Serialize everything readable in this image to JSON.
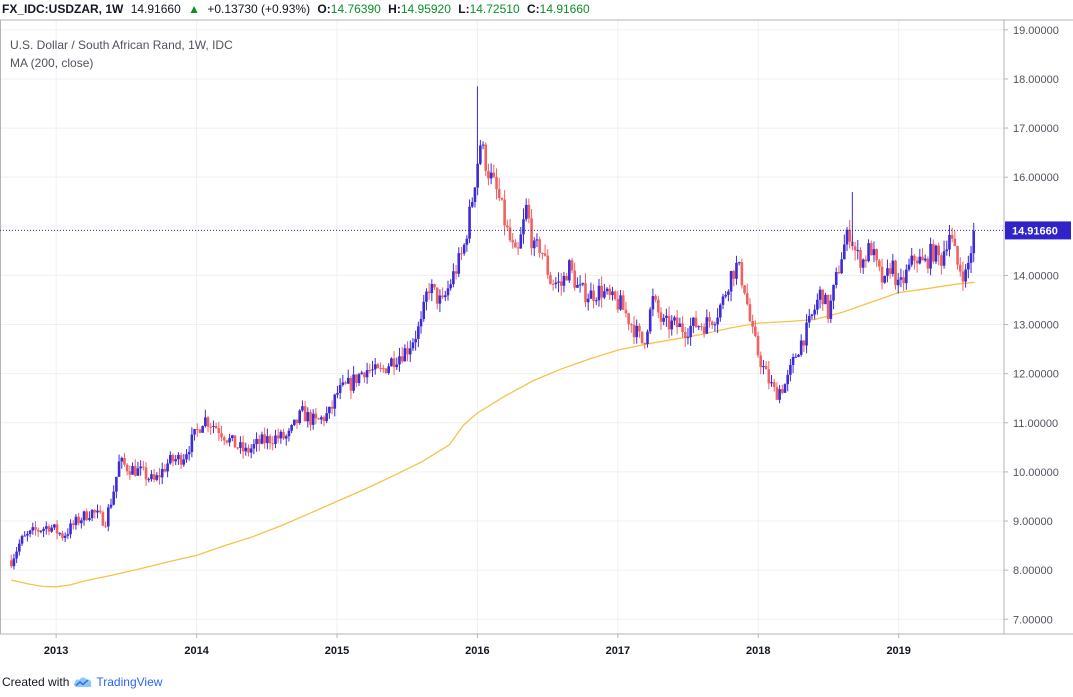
{
  "header": {
    "symbol": "FX_IDC:USDZAR, 1W",
    "last": "14.91660",
    "change": "+0.13730 (+0.93%)",
    "open_label": "O:",
    "open": "14.76390",
    "high_label": "H:",
    "high": "14.95920",
    "low_label": "L:",
    "low": "14.72510",
    "close_label": "C:",
    "close": "14.91660"
  },
  "legend": {
    "title": "U.S. Dollar / South African Rand, 1W, IDC",
    "indicator": "MA (200, close)"
  },
  "footer": {
    "created_with": "Created with",
    "brand": "TradingView"
  },
  "colors": {
    "up": "#3d2bd8",
    "down": "#ef6262",
    "ma": "#f7c24a",
    "price_line": "#2f27a8",
    "grid": "#eef0f3"
  },
  "chart_data": {
    "type": "candlestick",
    "title": "U.S. Dollar / South African Rand, 1W, IDC",
    "ylim": [
      6.7,
      19.2
    ],
    "yticks": [
      "7.00000",
      "8.00000",
      "9.00000",
      "10.00000",
      "11.00000",
      "12.00000",
      "13.00000",
      "14.00000",
      "15.00000",
      "16.00000",
      "17.00000",
      "18.00000",
      "19.00000"
    ],
    "ytick_values": [
      7,
      8,
      9,
      10,
      11,
      12,
      13,
      14,
      15,
      16,
      17,
      18,
      19
    ],
    "xlim": [
      2012.6,
      2019.75
    ],
    "xticks": [
      "2013",
      "2014",
      "2015",
      "2016",
      "2017",
      "2018",
      "2019"
    ],
    "xtick_values": [
      2013,
      2014,
      2015,
      2016,
      2017,
      2018,
      2019
    ],
    "current_price": 14.9166,
    "current_price_label": "14.91660",
    "close_anchors": [
      [
        2012.68,
        8.2
      ],
      [
        2012.75,
        8.6
      ],
      [
        2012.85,
        8.8
      ],
      [
        2012.95,
        8.9
      ],
      [
        2013.05,
        8.7
      ],
      [
        2013.15,
        9.0
      ],
      [
        2013.25,
        9.2
      ],
      [
        2013.3,
        9.1
      ],
      [
        2013.35,
        9.0
      ],
      [
        2013.4,
        9.5
      ],
      [
        2013.45,
        10.2
      ],
      [
        2013.5,
        10.1
      ],
      [
        2013.6,
        10.0
      ],
      [
        2013.7,
        9.8
      ],
      [
        2013.8,
        10.2
      ],
      [
        2013.9,
        10.3
      ],
      [
        2014.0,
        10.8
      ],
      [
        2014.05,
        11.1
      ],
      [
        2014.15,
        10.9
      ],
      [
        2014.25,
        10.6
      ],
      [
        2014.35,
        10.4
      ],
      [
        2014.45,
        10.6
      ],
      [
        2014.55,
        10.7
      ],
      [
        2014.65,
        10.7
      ],
      [
        2014.75,
        11.2
      ],
      [
        2014.85,
        11.0
      ],
      [
        2014.95,
        11.2
      ],
      [
        2015.0,
        11.6
      ],
      [
        2015.1,
        11.8
      ],
      [
        2015.2,
        12.1
      ],
      [
        2015.3,
        12.0
      ],
      [
        2015.4,
        12.3
      ],
      [
        2015.5,
        12.5
      ],
      [
        2015.6,
        13.0
      ],
      [
        2015.65,
        13.8
      ],
      [
        2015.75,
        13.4
      ],
      [
        2015.8,
        13.8
      ],
      [
        2015.9,
        14.5
      ],
      [
        2015.96,
        15.5
      ],
      [
        2016.02,
        16.7
      ],
      [
        2016.08,
        16.1
      ],
      [
        2016.15,
        15.6
      ],
      [
        2016.22,
        14.8
      ],
      [
        2016.28,
        14.3
      ],
      [
        2016.35,
        15.4
      ],
      [
        2016.4,
        14.5
      ],
      [
        2016.45,
        14.6
      ],
      [
        2016.52,
        13.9
      ],
      [
        2016.6,
        13.8
      ],
      [
        2016.65,
        14.2
      ],
      [
        2016.72,
        13.7
      ],
      [
        2016.8,
        13.6
      ],
      [
        2016.88,
        13.7
      ],
      [
        2016.95,
        13.5
      ],
      [
        2017.02,
        13.4
      ],
      [
        2017.1,
        13.0
      ],
      [
        2017.18,
        12.6
      ],
      [
        2017.25,
        13.5
      ],
      [
        2017.32,
        13.0
      ],
      [
        2017.4,
        13.0
      ],
      [
        2017.48,
        12.9
      ],
      [
        2017.55,
        13.0
      ],
      [
        2017.62,
        13.0
      ],
      [
        2017.7,
        13.2
      ],
      [
        2017.75,
        13.5
      ],
      [
        2017.8,
        14.0
      ],
      [
        2017.85,
        14.2
      ],
      [
        2017.9,
        13.8
      ],
      [
        2017.95,
        12.9
      ],
      [
        2018.0,
        12.4
      ],
      [
        2018.05,
        12.0
      ],
      [
        2018.12,
        11.6
      ],
      [
        2018.2,
        11.8
      ],
      [
        2018.28,
        12.5
      ],
      [
        2018.35,
        12.9
      ],
      [
        2018.45,
        13.7
      ],
      [
        2018.5,
        13.2
      ],
      [
        2018.6,
        14.5
      ],
      [
        2018.65,
        14.9
      ],
      [
        2018.7,
        14.4
      ],
      [
        2018.75,
        14.3
      ],
      [
        2018.8,
        14.6
      ],
      [
        2018.85,
        14.1
      ],
      [
        2018.9,
        13.8
      ],
      [
        2018.95,
        14.3
      ],
      [
        2019.0,
        13.7
      ],
      [
        2019.05,
        14.0
      ],
      [
        2019.12,
        14.4
      ],
      [
        2019.18,
        14.2
      ],
      [
        2019.24,
        14.5
      ],
      [
        2019.3,
        14.3
      ],
      [
        2019.36,
        14.9
      ],
      [
        2019.42,
        14.2
      ],
      [
        2019.48,
        14.0
      ],
      [
        2019.54,
        14.9
      ]
    ],
    "ma200_points": [
      [
        2012.68,
        7.8
      ],
      [
        2012.8,
        7.72
      ],
      [
        2012.9,
        7.67
      ],
      [
        2013.0,
        7.66
      ],
      [
        2013.1,
        7.7
      ],
      [
        2013.2,
        7.78
      ],
      [
        2013.4,
        7.9
      ],
      [
        2013.6,
        8.03
      ],
      [
        2013.8,
        8.17
      ],
      [
        2014.0,
        8.3
      ],
      [
        2014.2,
        8.5
      ],
      [
        2014.4,
        8.68
      ],
      [
        2014.6,
        8.9
      ],
      [
        2014.8,
        9.15
      ],
      [
        2015.0,
        9.4
      ],
      [
        2015.2,
        9.65
      ],
      [
        2015.4,
        9.92
      ],
      [
        2015.6,
        10.2
      ],
      [
        2015.8,
        10.55
      ],
      [
        2015.9,
        10.95
      ],
      [
        2016.0,
        11.2
      ],
      [
        2016.2,
        11.55
      ],
      [
        2016.4,
        11.86
      ],
      [
        2016.6,
        12.1
      ],
      [
        2016.8,
        12.3
      ],
      [
        2017.0,
        12.48
      ],
      [
        2017.2,
        12.6
      ],
      [
        2017.4,
        12.7
      ],
      [
        2017.6,
        12.8
      ],
      [
        2017.8,
        12.93
      ],
      [
        2018.0,
        13.03
      ],
      [
        2018.2,
        13.06
      ],
      [
        2018.4,
        13.1
      ],
      [
        2018.6,
        13.25
      ],
      [
        2018.8,
        13.45
      ],
      [
        2019.0,
        13.65
      ],
      [
        2019.2,
        13.73
      ],
      [
        2019.4,
        13.82
      ],
      [
        2019.54,
        13.86
      ]
    ],
    "candle_step": 0.0192
  }
}
